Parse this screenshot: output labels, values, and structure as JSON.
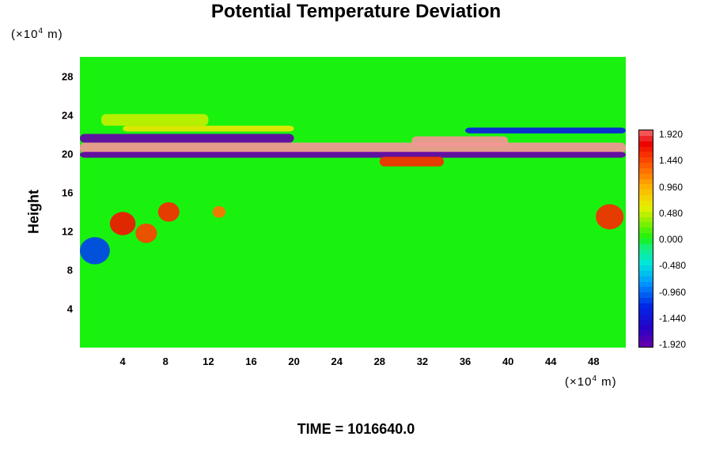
{
  "chart_data": {
    "type": "heatmap",
    "title": "Potential Temperature Deviation",
    "xlabel": "",
    "ylabel": "Height",
    "x_unit_prefix": "(×10",
    "x_unit_exp": "4",
    "x_unit_suffix": " m)",
    "y_unit_prefix": "(×10",
    "y_unit_exp": "4",
    "y_unit_suffix": " m)",
    "x_ticks": [
      "4",
      "8",
      "12",
      "16",
      "20",
      "24",
      "28",
      "32",
      "36",
      "40",
      "44",
      "48"
    ],
    "x_tick_values": [
      4,
      8,
      12,
      16,
      20,
      24,
      28,
      32,
      36,
      40,
      44,
      48
    ],
    "y_ticks": [
      "4",
      "8",
      "12",
      "16",
      "20",
      "24",
      "28"
    ],
    "y_tick_values": [
      4,
      8,
      12,
      16,
      20,
      24,
      28
    ],
    "xlim": [
      0,
      51
    ],
    "ylim": [
      0,
      30
    ],
    "colorbar_labels": [
      "1.920",
      "1.440",
      "0.960",
      "0.480",
      "0.000",
      "-0.480",
      "-0.960",
      "-1.440",
      "-1.920"
    ],
    "colorbar_values": [
      1.92,
      1.44,
      0.96,
      0.48,
      0.0,
      -0.48,
      -0.96,
      -1.44,
      -1.92
    ],
    "clim": [
      -1.92,
      1.92
    ],
    "footer": "TIME = 1016640.0",
    "features": [
      {
        "kind": "band",
        "y_center": 20.6,
        "y_half": 0.55,
        "x0": 0,
        "x1": 51,
        "value": 2.0
      },
      {
        "kind": "band",
        "y_center": 19.9,
        "y_half": 0.3,
        "x0": 0,
        "x1": 51,
        "value": -1.9
      },
      {
        "kind": "band",
        "y_center": 21.6,
        "y_half": 0.45,
        "x0": 0,
        "x1": 20,
        "value": -1.9
      },
      {
        "kind": "band",
        "y_center": 21.3,
        "y_half": 0.5,
        "x0": 31,
        "x1": 40,
        "value": 2.0
      },
      {
        "kind": "band",
        "y_center": 22.6,
        "y_half": 0.3,
        "x0": 4,
        "x1": 20,
        "value": 0.6
      },
      {
        "kind": "band",
        "y_center": 23.5,
        "y_half": 0.6,
        "x0": 2,
        "x1": 12,
        "value": 0.45
      },
      {
        "kind": "band",
        "y_center": 19.2,
        "y_half": 0.5,
        "x0": 28,
        "x1": 34,
        "value": 1.5
      },
      {
        "kind": "band",
        "y_center": 22.4,
        "y_half": 0.3,
        "x0": 36,
        "x1": 51,
        "value": -1.3
      },
      {
        "kind": "blob",
        "x": 4.0,
        "y": 12.8,
        "r": 1.2,
        "value": 1.6
      },
      {
        "kind": "blob",
        "x": 6.2,
        "y": 11.8,
        "r": 1.0,
        "value": 1.4
      },
      {
        "kind": "blob",
        "x": 8.3,
        "y": 14.0,
        "r": 1.0,
        "value": 1.5
      },
      {
        "kind": "blob",
        "x": 1.4,
        "y": 10.0,
        "r": 1.4,
        "value": -1.1
      },
      {
        "kind": "blob",
        "x": 49.5,
        "y": 13.5,
        "r": 1.3,
        "value": 1.5
      },
      {
        "kind": "blob",
        "x": 13.0,
        "y": 14.0,
        "r": 0.6,
        "value": 1.2
      }
    ]
  }
}
